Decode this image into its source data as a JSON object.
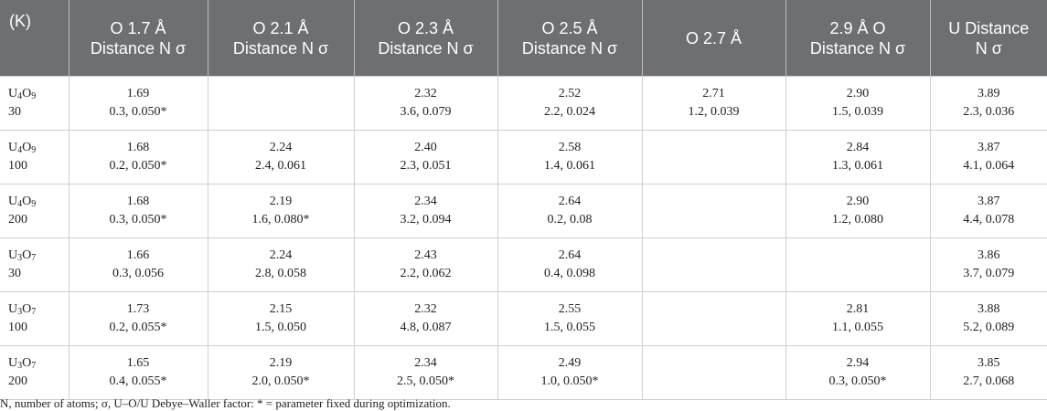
{
  "header": {
    "col0": "(K)",
    "col1": [
      "O 1.7 Å",
      "Distance N σ"
    ],
    "col2": [
      "O 2.1 Å",
      "Distance N σ"
    ],
    "col3": [
      "O 2.3 Å",
      "Distance N σ"
    ],
    "col4": [
      "O 2.5 Å",
      "Distance N σ"
    ],
    "col5": [
      "O 2.7 Å",
      ""
    ],
    "col6": [
      "2.9 Å O",
      "Distance N σ"
    ],
    "col7": [
      "U Distance",
      "N σ"
    ]
  },
  "rows": [
    {
      "sample": {
        "el1": "U",
        "n1": "4",
        "el2": "O",
        "n2": "9"
      },
      "temp": "30",
      "cells": [
        [
          "1.69",
          "0.3, 0.050*"
        ],
        [
          "",
          ""
        ],
        [
          "2.32",
          "3.6, 0.079"
        ],
        [
          "2.52",
          "2.2, 0.024"
        ],
        [
          "2.71",
          "1.2, 0.039"
        ],
        [
          "2.90",
          "1.5, 0.039"
        ],
        [
          "3.89",
          "2.3, 0.036"
        ]
      ]
    },
    {
      "sample": {
        "el1": "U",
        "n1": "4",
        "el2": "O",
        "n2": "9"
      },
      "temp": "100",
      "cells": [
        [
          "1.68",
          "0.2, 0.050*"
        ],
        [
          "2.24",
          "2.4, 0.061"
        ],
        [
          "2.40",
          "2.3, 0.051"
        ],
        [
          "2.58",
          "1.4, 0.061"
        ],
        [
          "",
          ""
        ],
        [
          "2.84",
          "1.3, 0.061"
        ],
        [
          "3.87",
          "4.1, 0.064"
        ]
      ]
    },
    {
      "sample": {
        "el1": "U",
        "n1": "4",
        "el2": "O",
        "n2": "9"
      },
      "temp": "200",
      "cells": [
        [
          "1.68",
          "0.3, 0.050*"
        ],
        [
          "2.19",
          "1.6, 0.080*"
        ],
        [
          "2.34",
          "3.2, 0.094"
        ],
        [
          "2.64",
          "0.2, 0.08"
        ],
        [
          "",
          ""
        ],
        [
          "2.90",
          "1.2, 0.080"
        ],
        [
          "3.87",
          "4.4, 0.078"
        ]
      ]
    },
    {
      "sample": {
        "el1": "U",
        "n1": "3",
        "el2": "O",
        "n2": "7"
      },
      "temp": "30",
      "cells": [
        [
          "1.66",
          "0.3, 0.056"
        ],
        [
          "2.24",
          "2.8, 0.058"
        ],
        [
          "2.43",
          "2.2, 0.062"
        ],
        [
          "2.64",
          "0.4, 0.098"
        ],
        [
          "",
          ""
        ],
        [
          "",
          ""
        ],
        [
          "3.86",
          "3.7, 0.079"
        ]
      ]
    },
    {
      "sample": {
        "el1": "U",
        "n1": "3",
        "el2": "O",
        "n2": "7"
      },
      "temp": "100",
      "cells": [
        [
          "1.73",
          "0.2, 0.055*"
        ],
        [
          "2.15",
          "1.5, 0.050"
        ],
        [
          "2.32",
          "4.8, 0.087"
        ],
        [
          "2.55",
          "1.5, 0.055"
        ],
        [
          "",
          ""
        ],
        [
          "2.81",
          "1.1, 0.055"
        ],
        [
          "3.88",
          "5.2, 0.089"
        ]
      ]
    },
    {
      "sample": {
        "el1": "U",
        "n1": "3",
        "el2": "O",
        "n2": "7"
      },
      "temp": "200",
      "cells": [
        [
          "1.65",
          "0.4, 0.055*"
        ],
        [
          "2.19",
          "2.0, 0.050*"
        ],
        [
          "2.34",
          "2.5, 0.050*"
        ],
        [
          "2.49",
          "1.0, 0.050*"
        ],
        [
          "",
          ""
        ],
        [
          "2.94",
          "0.3, 0.050*"
        ],
        [
          "3.85",
          "2.7, 0.068"
        ]
      ]
    }
  ],
  "footnote": "N, number of atoms; σ, U–O/U Debye–Waller factor: * = parameter fixed during optimization."
}
